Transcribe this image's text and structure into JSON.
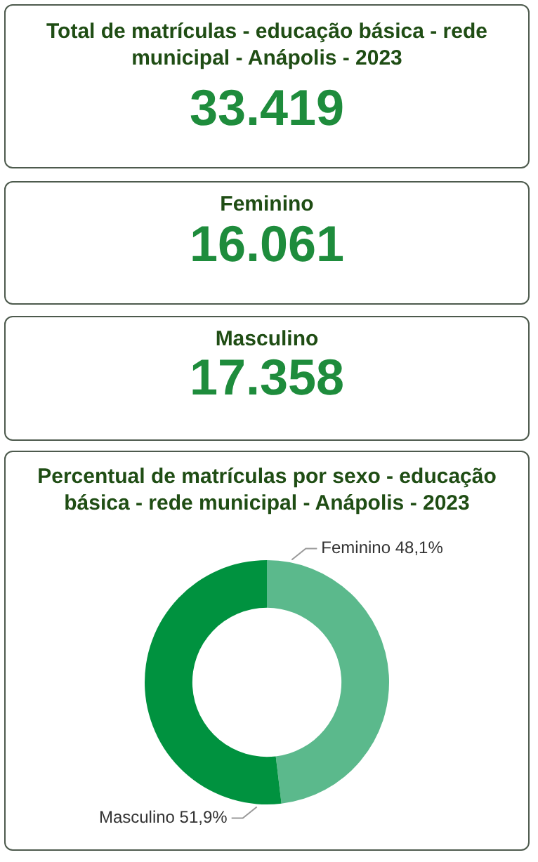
{
  "chart_data": [
    {
      "type": "other",
      "title": "Total de matrículas - educação básica - rede municipal - Anápolis - 2023",
      "annotations": [
        "33.419"
      ]
    },
    {
      "type": "other",
      "title": "Feminino",
      "annotations": [
        "16.061"
      ]
    },
    {
      "type": "other",
      "title": "Masculino",
      "annotations": [
        "17.358"
      ]
    },
    {
      "type": "donut",
      "title": "Percentual de matrículas por sexo - educação básica - rede municipal - Anápolis - 2023",
      "categories": [
        "Feminino",
        "Masculino"
      ],
      "values": [
        48.1,
        51.9
      ],
      "value_labels": [
        "48,1%",
        "51,9%"
      ],
      "colors": [
        "#5bb98c",
        "#00923f"
      ],
      "legend": false
    }
  ]
}
